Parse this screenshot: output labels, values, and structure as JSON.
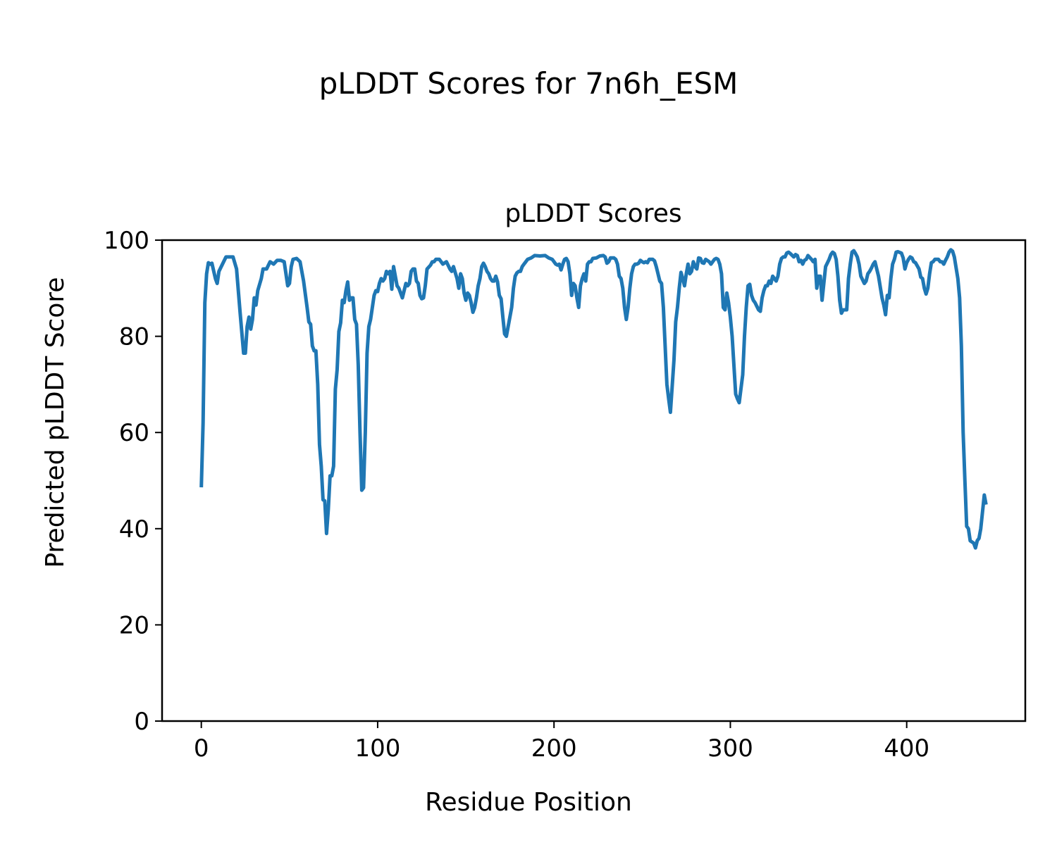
{
  "chart_data": {
    "type": "line",
    "title": "pLDDT Scores for 7n6h_ESM",
    "subtitle": "pLDDT Scores",
    "xlabel": "Residue Position",
    "ylabel": "Predicted pLDDT Score",
    "xlim": [
      -22.25,
      467.25
    ],
    "ylim": [
      0,
      100
    ],
    "xticks": [
      0,
      100,
      200,
      300,
      400
    ],
    "yticks": [
      0,
      20,
      40,
      60,
      80,
      100
    ],
    "grid": false,
    "color": "#1f77b4",
    "series": [
      {
        "name": "pLDDT",
        "x": [
          0,
          1,
          2,
          3,
          4,
          5,
          6,
          8,
          9,
          10,
          12,
          14,
          16,
          18,
          20,
          22,
          24,
          25,
          26,
          27,
          28,
          29,
          30,
          31,
          32,
          34,
          35,
          37,
          39,
          41,
          43,
          45,
          47,
          49,
          50,
          51,
          52,
          54,
          56,
          58,
          60,
          61,
          62,
          63,
          64,
          65,
          66,
          67,
          68,
          69,
          70,
          71,
          72,
          73,
          74,
          75,
          76,
          77,
          78,
          79,
          80,
          81,
          82,
          83,
          84,
          85,
          86,
          87,
          88,
          89,
          90,
          91,
          92,
          93,
          94,
          95,
          96,
          97,
          98,
          99,
          100,
          101,
          102,
          103,
          104,
          105,
          106,
          107,
          108,
          109,
          110,
          111,
          112,
          114,
          116,
          117,
          118,
          119,
          120,
          121,
          122,
          123,
          124,
          125,
          126,
          127,
          128,
          130,
          131,
          132,
          133,
          135,
          137,
          139,
          141,
          142,
          143,
          145,
          146,
          147,
          148,
          149,
          150,
          151,
          152,
          153,
          154,
          155,
          156,
          157,
          158,
          159,
          160,
          161,
          162,
          163,
          164,
          165,
          166,
          167,
          168,
          169,
          170,
          171,
          172,
          173,
          176,
          177,
          178,
          179,
          180,
          181,
          182,
          183,
          184,
          185,
          187,
          189,
          192,
          195,
          197,
          199,
          201,
          202,
          203,
          204,
          205,
          206,
          207,
          208,
          209,
          210,
          211,
          212,
          213,
          214,
          215,
          216,
          217,
          218,
          219,
          220,
          221,
          222,
          224,
          226,
          228,
          229,
          230,
          231,
          232,
          234,
          235,
          236,
          237,
          238,
          239,
          240,
          241,
          242,
          243,
          244,
          245,
          246,
          247,
          248,
          249,
          250,
          251,
          252,
          253,
          254,
          256,
          257,
          258,
          259,
          260,
          261,
          262,
          263,
          264,
          265,
          266,
          268,
          269,
          270,
          271,
          272,
          273,
          274,
          275,
          276,
          277,
          278,
          279,
          280,
          281,
          282,
          283,
          284,
          285,
          286,
          288,
          289,
          290,
          291,
          292,
          293,
          294,
          295,
          296,
          297,
          298,
          299,
          300,
          301,
          302,
          303,
          304,
          305,
          307,
          308,
          309,
          310,
          311,
          312,
          313,
          314,
          316,
          317,
          318,
          319,
          320,
          321,
          322,
          323,
          324,
          326,
          327,
          328,
          329,
          330,
          331,
          332,
          333,
          334,
          336,
          337,
          338,
          339,
          340,
          341,
          342,
          343,
          344,
          346,
          347,
          348,
          349,
          350,
          351,
          352,
          353,
          354,
          356,
          357,
          358,
          359,
          360,
          361,
          362,
          363,
          364,
          366,
          367,
          368,
          369,
          370,
          371,
          372,
          373,
          374,
          376,
          377,
          378,
          379,
          380,
          381,
          382,
          383,
          384,
          386,
          387,
          388,
          389,
          390,
          391,
          392,
          393,
          394,
          395,
          397,
          398,
          399,
          400,
          401,
          402,
          403,
          404,
          405,
          407,
          408,
          409,
          410,
          411,
          412,
          413,
          414,
          415,
          416,
          418,
          419,
          420,
          421,
          422,
          423,
          424,
          425,
          426,
          427,
          429,
          430,
          431,
          432,
          433,
          434,
          435,
          436,
          438,
          439,
          440,
          441,
          442,
          444,
          445
        ],
        "y": [
          48.6,
          62,
          87,
          93,
          95.3,
          95,
          95.2,
          92,
          91,
          93.5,
          95,
          96.5,
          96.5,
          96.5,
          94,
          85,
          76.5,
          76.5,
          82,
          84,
          81.5,
          83.5,
          88,
          86.5,
          89.5,
          92,
          94,
          94,
          95.5,
          95,
          95.8,
          95.8,
          95.5,
          90.5,
          91,
          94.5,
          96,
          96.2,
          95.5,
          91.5,
          86,
          83,
          82.5,
          78,
          77,
          77,
          70,
          57.5,
          53,
          46,
          45.8,
          39,
          44,
          51,
          51,
          53,
          69,
          73,
          81,
          82.8,
          87.5,
          87,
          89.5,
          91.3,
          87.5,
          88,
          88,
          83.5,
          82.5,
          74,
          60,
          48,
          48.5,
          60,
          76.5,
          82,
          83.5,
          86,
          88.5,
          89.5,
          89.3,
          91,
          92,
          91.5,
          92,
          93.5,
          93,
          93.5,
          89.8,
          94.5,
          92.5,
          90.5,
          90,
          88,
          91,
          90.5,
          91,
          93.5,
          94,
          94,
          91.5,
          91,
          88.5,
          87.8,
          88,
          90.5,
          94,
          94.8,
          95.5,
          95.5,
          96,
          96,
          95,
          95.5,
          94,
          93.5,
          94.5,
          92,
          90,
          93,
          92,
          89,
          87.5,
          89,
          88.5,
          87,
          85,
          86,
          88,
          90.5,
          92,
          94.5,
          95.2,
          94.5,
          93.5,
          93,
          92,
          91.5,
          91.5,
          92.5,
          91.3,
          88.5,
          87.8,
          84,
          80.5,
          80,
          86,
          90,
          92.5,
          93.2,
          93.5,
          93.5,
          94.5,
          95,
          95.5,
          96,
          96.3,
          96.8,
          96.7,
          96.8,
          96.3,
          96,
          95,
          94.8,
          95,
          93.8,
          95,
          96,
          96.2,
          95.5,
          93,
          88.5,
          91,
          90.5,
          88,
          86,
          90.5,
          92,
          93,
          91.5,
          95,
          95.5,
          95.5,
          96.2,
          96.3,
          96.7,
          96.8,
          96.5,
          95.2,
          95.5,
          96.3,
          96.3,
          96,
          95,
          92.5,
          92,
          90,
          86,
          83.5,
          86,
          90,
          93,
          94.5,
          95,
          95,
          95.2,
          95.8,
          95.5,
          95.3,
          95.5,
          95.3,
          96,
          96,
          95.7,
          94.5,
          93,
          91.5,
          91,
          86,
          78,
          70,
          67,
          64.2,
          75,
          83,
          86,
          90,
          93.3,
          92,
          90.5,
          93,
          95,
          93,
          93.5,
          95.5,
          94.5,
          94,
          96.3,
          96.2,
          95.3,
          95.2,
          96,
          95.5,
          95,
          95.5,
          96,
          96.2,
          96,
          95,
          93,
          86,
          85.5,
          89,
          87,
          84,
          80,
          74,
          68,
          67,
          66.2,
          72,
          80,
          86,
          90.5,
          90.8,
          88.5,
          87.5,
          87,
          85.5,
          85.2,
          88,
          89.5,
          90.5,
          90.5,
          91.5,
          91,
          92.5,
          91.5,
          92.5,
          95,
          96.2,
          96.5,
          96.5,
          97.3,
          97.5,
          97.2,
          96.5,
          97,
          96.8,
          95.5,
          95.8,
          95,
          95.8,
          96,
          96.8,
          96,
          95.5,
          96,
          90,
          92.5,
          92.5,
          87.5,
          91,
          94.5,
          96,
          97,
          97.5,
          97.2,
          96,
          92.5,
          87.5,
          84.8,
          85.5,
          85.5,
          92,
          95,
          97.5,
          97.8,
          97.2,
          96.5,
          95,
          92.5,
          91,
          91.5,
          93,
          93.5,
          94.2,
          95,
          95.5,
          94,
          92.5,
          88,
          86.5,
          84.5,
          88.5,
          88,
          92,
          95,
          96,
          97.5,
          97.6,
          97.3,
          96.3,
          94,
          95.3,
          96,
          96.5,
          96.3,
          95.5,
          95.3,
          94,
          92.3,
          92,
          90,
          88.8,
          90,
          93,
          95.3,
          95.5,
          96,
          96,
          95.5,
          95.5,
          95,
          95.8,
          96.5,
          97.5,
          98,
          97.7,
          96.5,
          92,
          88,
          78,
          60,
          50,
          40.5,
          40,
          37.5,
          37,
          36,
          37.5,
          38,
          40,
          47,
          45
        ]
      }
    ]
  }
}
